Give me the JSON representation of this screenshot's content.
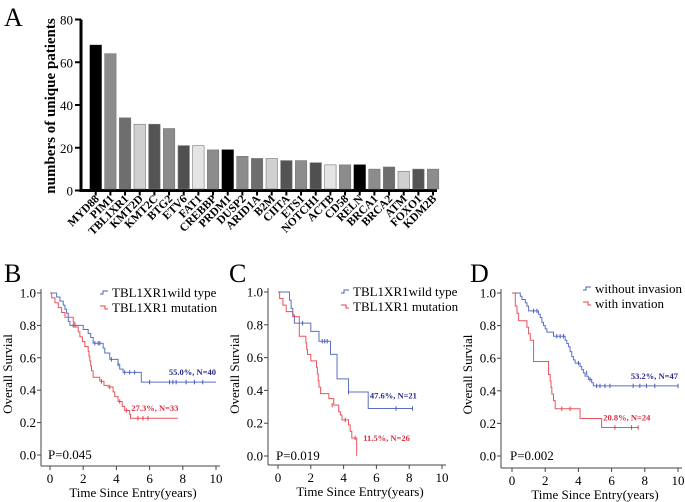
{
  "chart_data": [
    {
      "id": "A",
      "panel_label": "A",
      "type": "bar",
      "title": "",
      "xlabel": "",
      "ylabel": "numbers of unique patients",
      "ylim": [
        0,
        80
      ],
      "yticks": [
        0,
        20,
        40,
        60,
        80
      ],
      "grid": false,
      "categories": [
        "MYD88",
        "PIM1",
        "TBL1XR1",
        "KMT2D",
        "KMT2C",
        "BTG2",
        "ETV6",
        "FAT1",
        "CREBBP",
        "PRDM1",
        "DUSP2",
        "ARID1A",
        "B2M",
        "CIITA",
        "ETS1",
        "NOTCH1",
        "ACTB",
        "CD58",
        "RELN",
        "BRCA1",
        "BRCA2",
        "ATM",
        "FOXO1",
        "KDM2B"
      ],
      "values": [
        68,
        64,
        34,
        31,
        31,
        29,
        21,
        21,
        19,
        19,
        16,
        15,
        15,
        14,
        14,
        13,
        12,
        12,
        12,
        10,
        11,
        9,
        10,
        10
      ],
      "colors": [
        "#000000",
        "#8c8c8c",
        "#6e6e6e",
        "#d0d0d0",
        "#545454",
        "#8c8c8c",
        "#505050",
        "#e4e4e4",
        "#8c8c8c",
        "#000000",
        "#8c8c8c",
        "#6e6e6e",
        "#d0d0d0",
        "#545454",
        "#8c8c8c",
        "#505050",
        "#e4e4e4",
        "#8c8c8c",
        "#000000",
        "#8c8c8c",
        "#6e6e6e",
        "#d0d0d0",
        "#545454",
        "#8c8c8c"
      ]
    },
    {
      "id": "B",
      "panel_label": "B",
      "type": "line",
      "subtype": "kaplan-meier",
      "xlabel": "Time Since Entry(years)",
      "ylabel": "Overall Survial",
      "xlim": [
        0,
        10
      ],
      "ylim": [
        0,
        1.0
      ],
      "xticks": [
        0,
        2,
        4,
        6,
        8,
        10
      ],
      "yticks": [
        "0.0",
        "0.2",
        "0.4",
        "0.6",
        "0.8",
        "1.0"
      ],
      "legend_position": "top-right",
      "p_value": "P=0.045",
      "series": [
        {
          "name": "TBL1XR1wild type",
          "color": "#4a5fbf",
          "annotation": "55.0%, N=40",
          "annotation_color": "#2a2a8a",
          "steps": [
            [
              0,
              1.0
            ],
            [
              0.4,
              0.975
            ],
            [
              0.6,
              0.95
            ],
            [
              0.8,
              0.925
            ],
            [
              0.9,
              0.9
            ],
            [
              1.0,
              0.875
            ],
            [
              1.1,
              0.825
            ],
            [
              1.2,
              0.8
            ],
            [
              2.0,
              0.775
            ],
            [
              2.3,
              0.75
            ],
            [
              2.45,
              0.725
            ],
            [
              2.6,
              0.69
            ],
            [
              3.2,
              0.66
            ],
            [
              3.3,
              0.63
            ],
            [
              3.6,
              0.59
            ],
            [
              4.1,
              0.56
            ],
            [
              4.2,
              0.53
            ],
            [
              4.4,
              0.51
            ],
            [
              5.5,
              0.45
            ],
            [
              10.0,
              0.45
            ]
          ],
          "censors": [
            [
              1.4,
              0.8
            ],
            [
              1.5,
              0.8
            ],
            [
              2.7,
              0.69
            ],
            [
              2.9,
              0.69
            ],
            [
              3.0,
              0.69
            ],
            [
              3.7,
              0.59
            ],
            [
              4.1,
              0.56
            ],
            [
              4.5,
              0.51
            ],
            [
              4.8,
              0.51
            ],
            [
              5.1,
              0.51
            ],
            [
              6.0,
              0.45
            ],
            [
              7.2,
              0.45
            ],
            [
              7.4,
              0.45
            ],
            [
              7.6,
              0.45
            ],
            [
              8.2,
              0.45
            ],
            [
              8.7,
              0.45
            ],
            [
              9.2,
              0.45
            ]
          ]
        },
        {
          "name": "TBL1XR1 mutation",
          "color": "#e8404a",
          "annotation": "27.3%, N=33",
          "annotation_color": "#d83040",
          "steps": [
            [
              0,
              1.0
            ],
            [
              0.1,
              0.97
            ],
            [
              0.3,
              0.94
            ],
            [
              0.5,
              0.91
            ],
            [
              0.7,
              0.88
            ],
            [
              0.9,
              0.85
            ],
            [
              1.4,
              0.82
            ],
            [
              1.5,
              0.79
            ],
            [
              1.7,
              0.76
            ],
            [
              1.8,
              0.73
            ],
            [
              1.95,
              0.7
            ],
            [
              2.1,
              0.67
            ],
            [
              2.3,
              0.64
            ],
            [
              2.35,
              0.61
            ],
            [
              2.4,
              0.58
            ],
            [
              2.45,
              0.55
            ],
            [
              2.5,
              0.52
            ],
            [
              2.6,
              0.48
            ],
            [
              3.0,
              0.455
            ],
            [
              3.25,
              0.43
            ],
            [
              3.5,
              0.42
            ],
            [
              3.8,
              0.39
            ],
            [
              3.9,
              0.36
            ],
            [
              4.1,
              0.33
            ],
            [
              4.35,
              0.3
            ],
            [
              4.5,
              0.275
            ],
            [
              4.8,
              0.25
            ],
            [
              4.85,
              0.227
            ],
            [
              7.7,
              0.227
            ]
          ],
          "censors": [
            [
              3.1,
              0.455
            ],
            [
              3.6,
              0.42
            ],
            [
              4.2,
              0.33
            ],
            [
              4.6,
              0.275
            ],
            [
              5.3,
              0.227
            ],
            [
              5.6,
              0.227
            ],
            [
              5.9,
              0.227
            ]
          ]
        }
      ]
    },
    {
      "id": "C",
      "panel_label": "C",
      "type": "line",
      "subtype": "kaplan-meier",
      "xlabel": "Time Since Entry(years)",
      "ylabel": "Overall Survial",
      "xlim": [
        0,
        10
      ],
      "ylim": [
        0,
        1.0
      ],
      "xticks": [
        0,
        2,
        4,
        6,
        8,
        10
      ],
      "yticks": [
        "0.0",
        "0.2",
        "0.4",
        "0.6",
        "0.8",
        "1.0"
      ],
      "legend_position": "top-right",
      "p_value": "P=0.019",
      "series": [
        {
          "name": "TBL1XR1wild type",
          "color": "#4a5fbf",
          "annotation": "47.6%, N=21",
          "annotation_color": "#2a2a8a",
          "steps": [
            [
              0,
              1.0
            ],
            [
              0.7,
              0.95
            ],
            [
              0.8,
              0.9
            ],
            [
              0.9,
              0.86
            ],
            [
              1.0,
              0.81
            ],
            [
              2.0,
              0.76
            ],
            [
              2.5,
              0.7
            ],
            [
              3.2,
              0.62
            ],
            [
              3.6,
              0.47
            ],
            [
              4.3,
              0.39
            ],
            [
              5.5,
              0.29
            ],
            [
              8.2,
              0.29
            ]
          ],
          "censors": [
            [
              1.5,
              0.81
            ],
            [
              2.7,
              0.7
            ],
            [
              2.85,
              0.7
            ],
            [
              3.0,
              0.7
            ],
            [
              4.3,
              0.39
            ],
            [
              7.2,
              0.29
            ],
            [
              8.2,
              0.29
            ]
          ]
        },
        {
          "name": "TBL1XR1 mutation",
          "color": "#e8404a",
          "annotation": "11.5%, N=26",
          "annotation_color": "#d83040",
          "steps": [
            [
              0,
              1.0
            ],
            [
              0.1,
              0.96
            ],
            [
              0.3,
              0.92
            ],
            [
              0.5,
              0.88
            ],
            [
              0.9,
              0.85
            ],
            [
              1.3,
              0.81
            ],
            [
              1.3,
              0.77
            ],
            [
              1.3,
              0.73
            ],
            [
              1.7,
              0.69
            ],
            [
              1.75,
              0.65
            ],
            [
              1.8,
              0.62
            ],
            [
              2.0,
              0.58
            ],
            [
              2.35,
              0.54
            ],
            [
              2.4,
              0.5
            ],
            [
              2.45,
              0.46
            ],
            [
              2.5,
              0.42
            ],
            [
              2.6,
              0.38
            ],
            [
              3.1,
              0.35
            ],
            [
              3.4,
              0.31
            ],
            [
              3.7,
              0.27
            ],
            [
              3.8,
              0.25
            ],
            [
              3.9,
              0.22
            ],
            [
              4.3,
              0.19
            ],
            [
              4.4,
              0.15
            ],
            [
              4.5,
              0.11
            ],
            [
              4.8,
              0.0
            ]
          ],
          "censors": [
            [
              3.3,
              0.31
            ],
            [
              4.1,
              0.22
            ],
            [
              4.7,
              0.11
            ]
          ]
        }
      ]
    },
    {
      "id": "D",
      "panel_label": "D",
      "type": "line",
      "subtype": "kaplan-meier",
      "xlabel": "Time Since Entry(years)",
      "ylabel": "Overall Survial",
      "xlim": [
        0,
        10
      ],
      "ylim": [
        0,
        1.0
      ],
      "xticks": [
        0,
        2,
        4,
        6,
        8,
        10
      ],
      "yticks": [
        "0.0",
        "0.2",
        "0.4",
        "0.6",
        "0.8",
        "1.0"
      ],
      "legend_position": "top-right",
      "p_value": "P=0.002",
      "series": [
        {
          "name": "without invasion",
          "color": "#4a5fbf",
          "annotation": "53.2%, N=47",
          "annotation_color": "#2a2a8a",
          "steps": [
            [
              0,
              1.0
            ],
            [
              0.5,
              0.98
            ],
            [
              0.6,
              0.96
            ],
            [
              0.8,
              0.94
            ],
            [
              0.9,
              0.92
            ],
            [
              1.0,
              0.89
            ],
            [
              1.6,
              0.87
            ],
            [
              1.7,
              0.85
            ],
            [
              1.8,
              0.82
            ],
            [
              1.9,
              0.8
            ],
            [
              2.0,
              0.78
            ],
            [
              2.1,
              0.76
            ],
            [
              2.5,
              0.735
            ],
            [
              3.2,
              0.71
            ],
            [
              3.3,
              0.69
            ],
            [
              3.4,
              0.67
            ],
            [
              3.5,
              0.64
            ],
            [
              3.6,
              0.61
            ],
            [
              3.7,
              0.59
            ],
            [
              3.8,
              0.57
            ],
            [
              4.1,
              0.55
            ],
            [
              4.2,
              0.53
            ],
            [
              4.3,
              0.51
            ],
            [
              4.4,
              0.49
            ],
            [
              4.6,
              0.47
            ],
            [
              4.8,
              0.45
            ],
            [
              4.9,
              0.43
            ],
            [
              10.0,
              0.43
            ]
          ],
          "censors": [
            [
              1.3,
              0.89
            ],
            [
              1.5,
              0.89
            ],
            [
              2.7,
              0.735
            ],
            [
              2.9,
              0.735
            ],
            [
              3.1,
              0.735
            ],
            [
              4.0,
              0.57
            ],
            [
              4.5,
              0.51
            ],
            [
              4.7,
              0.47
            ],
            [
              5.1,
              0.43
            ],
            [
              5.3,
              0.43
            ],
            [
              5.6,
              0.43
            ],
            [
              5.9,
              0.43
            ],
            [
              7.3,
              0.43
            ],
            [
              7.7,
              0.43
            ],
            [
              8.1,
              0.43
            ],
            [
              8.6,
              0.43
            ],
            [
              10.0,
              0.43
            ]
          ]
        },
        {
          "name": "with invation",
          "color": "#e8404a",
          "annotation": "20.8%, N=24",
          "annotation_color": "#d83040",
          "steps": [
            [
              0,
              1.0
            ],
            [
              0.2,
              0.92
            ],
            [
              0.3,
              0.875
            ],
            [
              0.4,
              0.83
            ],
            [
              0.9,
              0.79
            ],
            [
              1.0,
              0.75
            ],
            [
              1.1,
              0.71
            ],
            [
              1.3,
              0.58
            ],
            [
              2.2,
              0.5
            ],
            [
              2.3,
              0.46
            ],
            [
              2.35,
              0.42
            ],
            [
              2.4,
              0.38
            ],
            [
              2.5,
              0.34
            ],
            [
              2.6,
              0.29
            ],
            [
              4.1,
              0.23
            ],
            [
              5.4,
              0.175
            ],
            [
              7.6,
              0.175
            ]
          ],
          "censors": [
            [
              3.0,
              0.29
            ],
            [
              3.5,
              0.29
            ],
            [
              6.2,
              0.175
            ],
            [
              7.2,
              0.175
            ],
            [
              7.6,
              0.175
            ]
          ]
        }
      ]
    }
  ]
}
